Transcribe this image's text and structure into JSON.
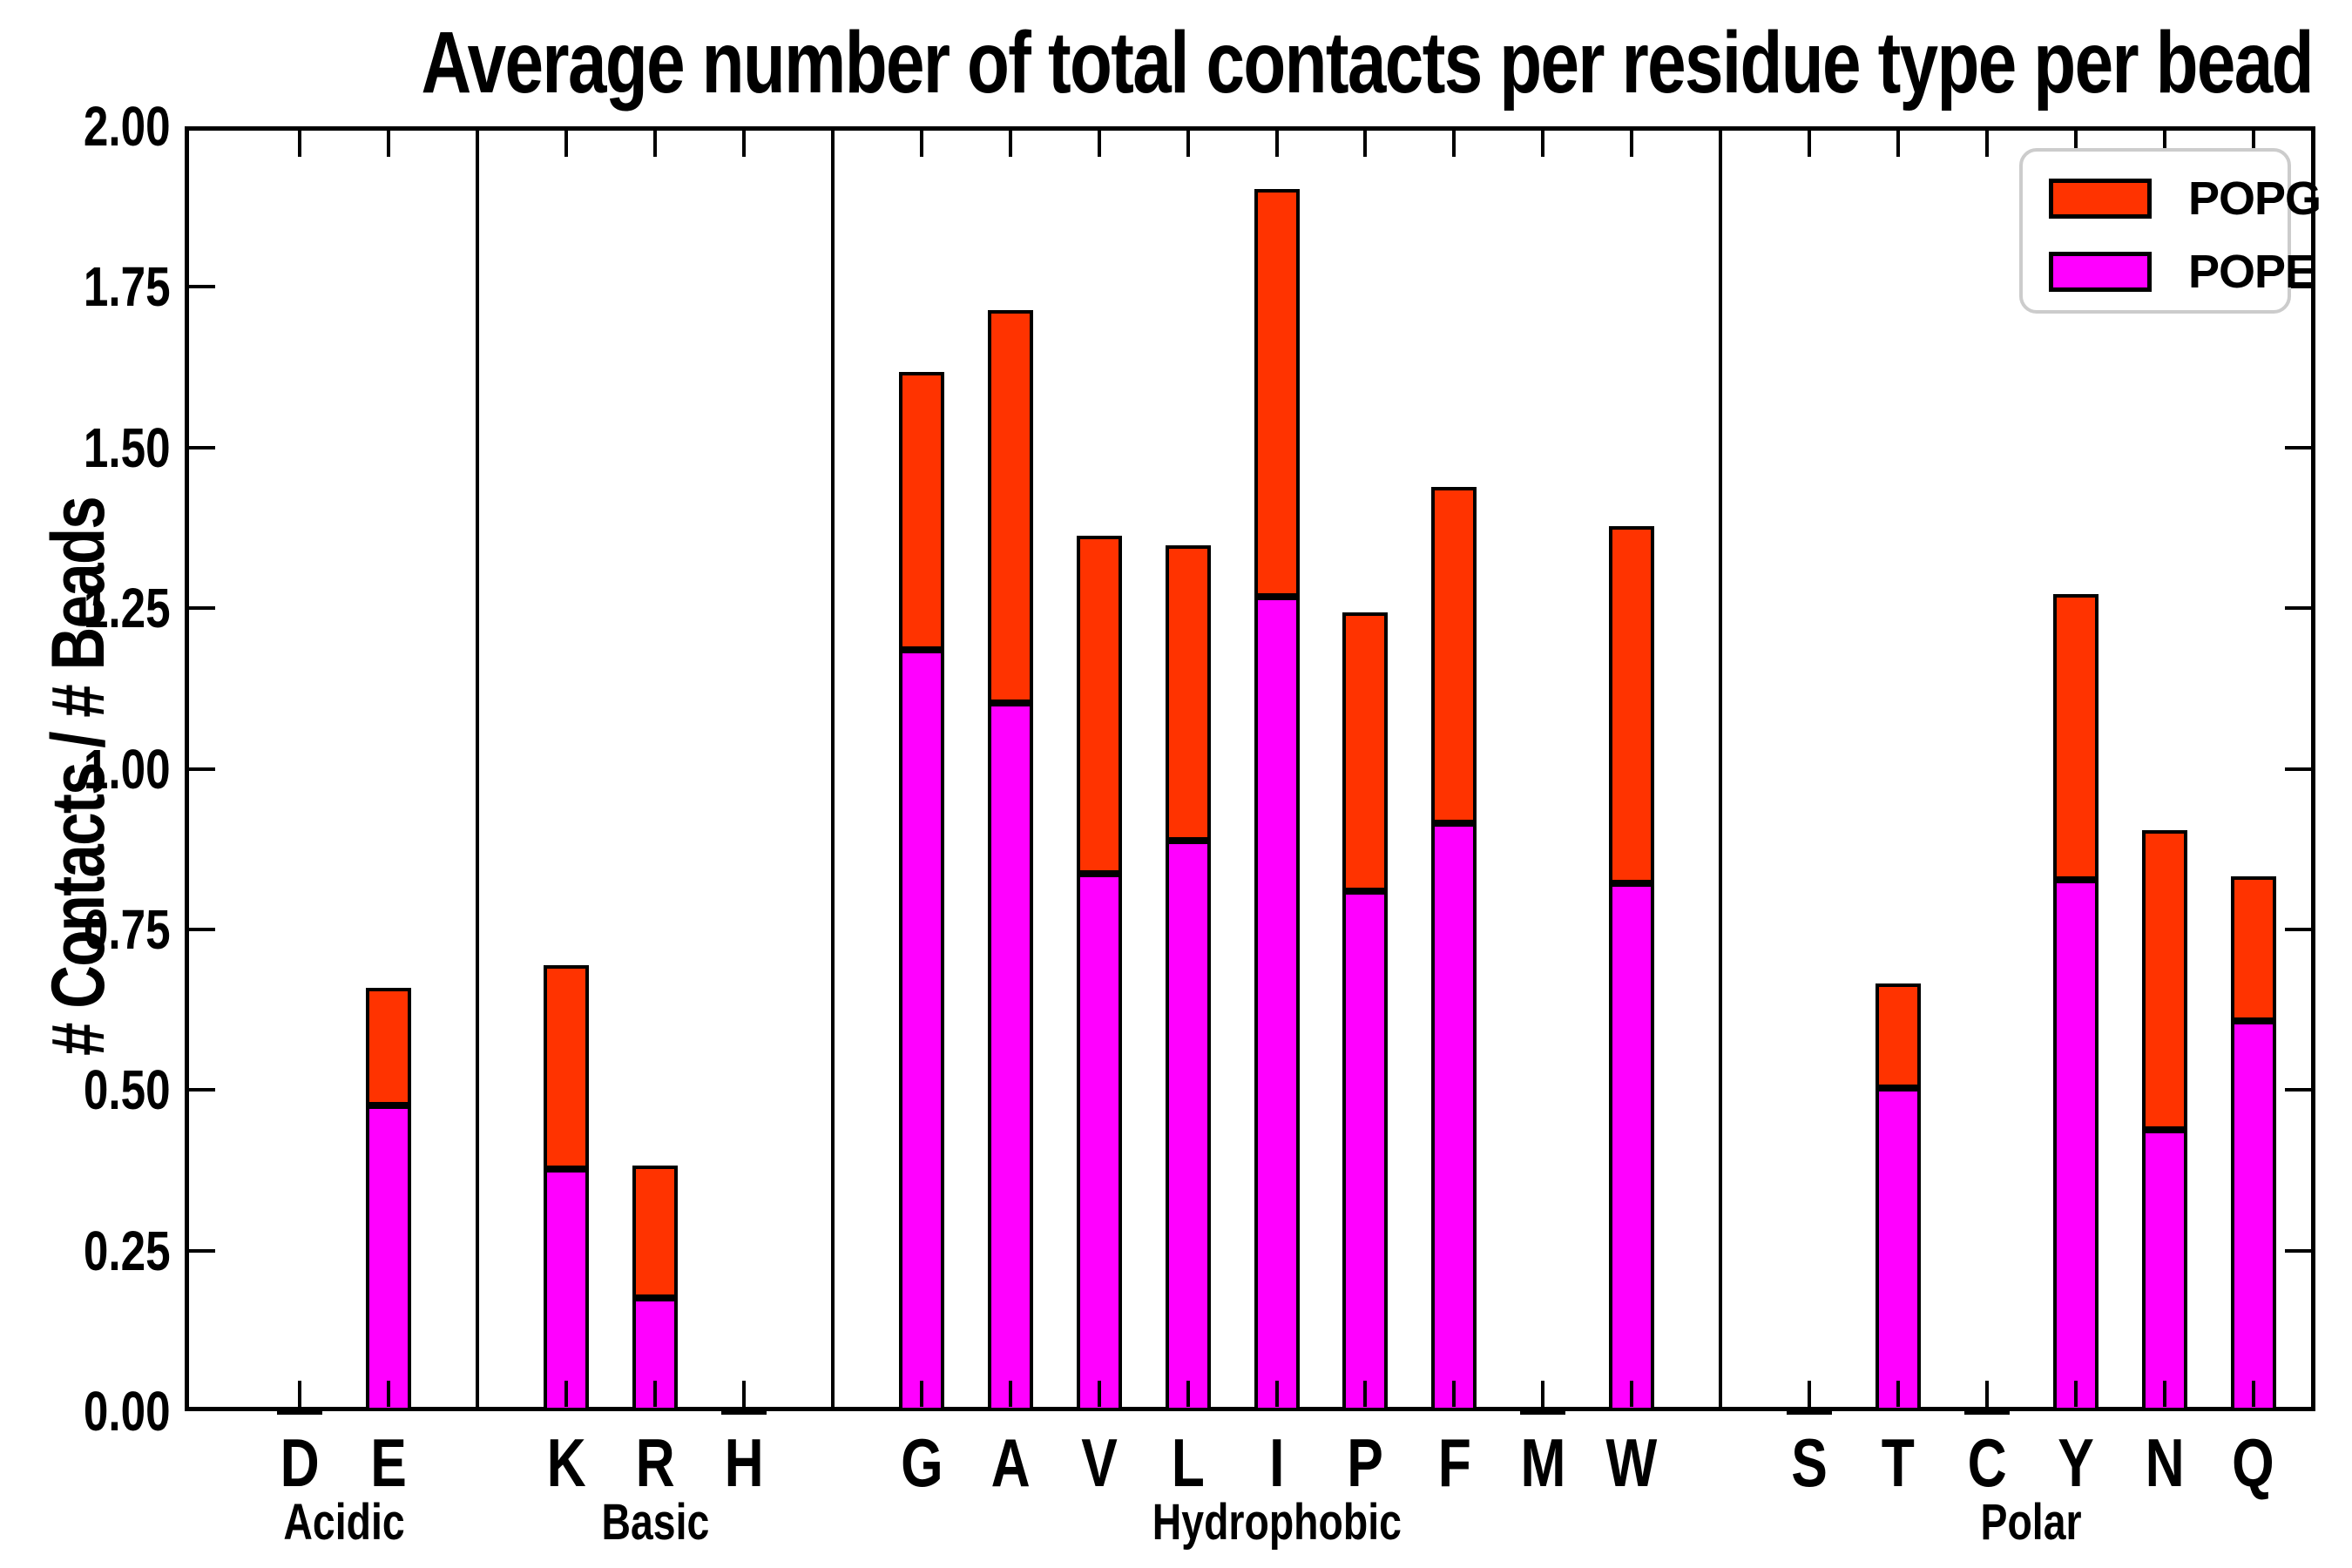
{
  "title": "Average number of total contacts per residue type per bead",
  "ylabel": "# Contacts / # Beads",
  "legend": {
    "position": "upper right",
    "items": [
      {
        "label": "POPG",
        "color": "#ff3300"
      },
      {
        "label": "POPE",
        "color": "#ff00ff"
      }
    ]
  },
  "chart_data": {
    "type": "bar",
    "stacked": true,
    "title": "Average number of total contacts per residue type per bead",
    "xlabel": "",
    "ylabel": "# Contacts / # Beads",
    "ylim": [
      0,
      2.0
    ],
    "yticks": [
      "0.00",
      "0.25",
      "0.50",
      "0.75",
      "1.00",
      "1.25",
      "1.50",
      "1.75",
      "2.00"
    ],
    "grid": false,
    "legend_position": "upper right",
    "categories": [
      "D",
      "E",
      "K",
      "R",
      "H",
      "G",
      "A",
      "V",
      "L",
      "I",
      "P",
      "F",
      "M",
      "W",
      "S",
      "T",
      "C",
      "Y",
      "N",
      "Q"
    ],
    "groups": [
      {
        "label": "Acidic",
        "members": [
          "D",
          "E"
        ]
      },
      {
        "label": "Basic",
        "members": [
          "K",
          "R",
          "H"
        ]
      },
      {
        "label": "Hydrophobic",
        "members": [
          "G",
          "A",
          "V",
          "L",
          "I",
          "P",
          "F",
          "M",
          "W"
        ]
      },
      {
        "label": "Polar",
        "members": [
          "S",
          "T",
          "C",
          "Y",
          "N",
          "Q"
        ]
      }
    ],
    "series": [
      {
        "name": "POPE",
        "color": "#ff00ff",
        "values": [
          0.005,
          0.476,
          0.377,
          0.176,
          0.005,
          1.185,
          1.102,
          0.837,
          0.888,
          1.268,
          0.809,
          0.915,
          0.005,
          0.822,
          0.005,
          0.503,
          0.005,
          0.827,
          0.438,
          0.607
        ]
      },
      {
        "name": "POPG",
        "color": "#ff3300",
        "values": [
          0.0,
          0.183,
          0.317,
          0.206,
          0.0,
          0.432,
          0.612,
          0.526,
          0.46,
          0.635,
          0.434,
          0.523,
          0.0,
          0.555,
          0.0,
          0.163,
          0.0,
          0.445,
          0.466,
          0.226
        ]
      }
    ],
    "totals": [
      0.005,
      0.659,
      0.694,
      0.382,
      0.005,
      1.617,
      1.714,
      1.363,
      1.348,
      1.903,
      1.243,
      1.438,
      0.005,
      1.377,
      0.005,
      0.666,
      0.005,
      1.272,
      0.904,
      0.833
    ]
  }
}
